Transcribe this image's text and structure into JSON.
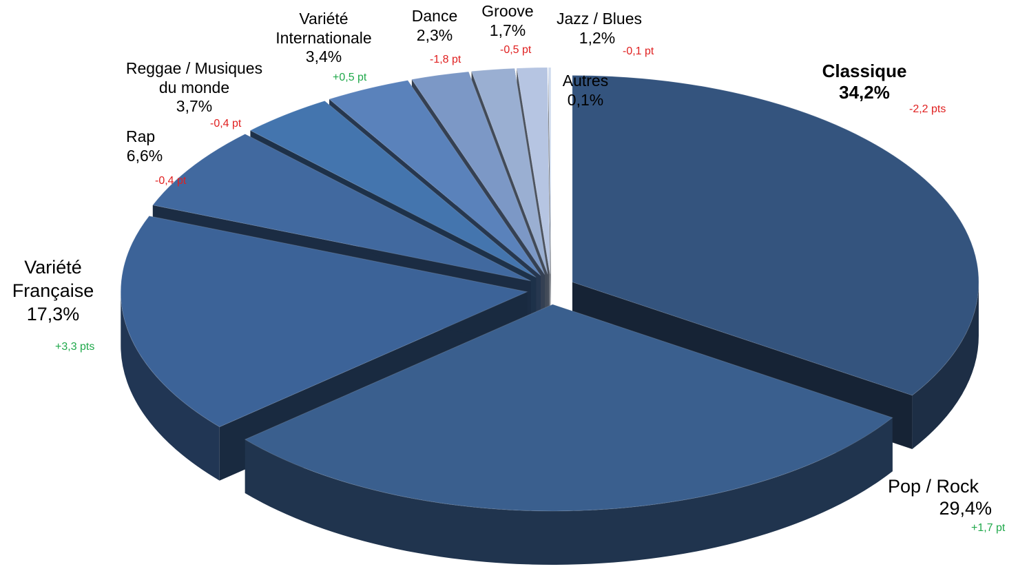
{
  "chart_data": {
    "type": "pie",
    "subtype": "3d-exploded",
    "slices": [
      {
        "label": "Classique",
        "value": 34.2,
        "value_text": "34,2%",
        "delta": "-2,2 pts",
        "delta_color": "#e02020",
        "color": "#34547e"
      },
      {
        "label": "Pop / Rock",
        "value": 29.4,
        "value_text": "29,4%",
        "delta": "+1,7 pt",
        "delta_color": "#1fa84a",
        "color": "#3a5f8e"
      },
      {
        "label": "Variété Française",
        "value": 17.3,
        "value_text": "17,3%",
        "delta": "+3,3 pts",
        "delta_color": "#1fa84a",
        "color": "#3c6398"
      },
      {
        "label": "Rap",
        "value": 6.6,
        "value_text": "6,6%",
        "delta": "-0,4 pt",
        "delta_color": "#e02020",
        "color": "#41699f"
      },
      {
        "label": "Reggae / Musiques du monde",
        "value": 3.7,
        "value_text": "3,7%",
        "delta": "-0,4 pt",
        "delta_color": "#e02020",
        "color": "#4475ae"
      },
      {
        "label": "Variété Internationale",
        "value": 3.4,
        "value_text": "3,4%",
        "delta": "+0,5 pt",
        "delta_color": "#1fa84a",
        "color": "#5a82bb"
      },
      {
        "label": "Dance",
        "value": 2.3,
        "value_text": "2,3%",
        "delta": "-1,8 pt",
        "delta_color": "#e02020",
        "color": "#7c98c6"
      },
      {
        "label": "Groove",
        "value": 1.7,
        "value_text": "1,7%",
        "delta": "-0,5 pt",
        "delta_color": "#e02020",
        "color": "#9aafd2"
      },
      {
        "label": "Jazz / Blues",
        "value": 1.2,
        "value_text": "1,2%",
        "delta": "-0,1 pt",
        "delta_color": "#e02020",
        "color": "#b6c5e2"
      },
      {
        "label": "Autres",
        "value": 0.1,
        "value_text": "0,1%",
        "delta": "",
        "delta_color": "",
        "color": "#d0dbee"
      }
    ],
    "legend": "none",
    "emphasized_label": "Classique"
  }
}
